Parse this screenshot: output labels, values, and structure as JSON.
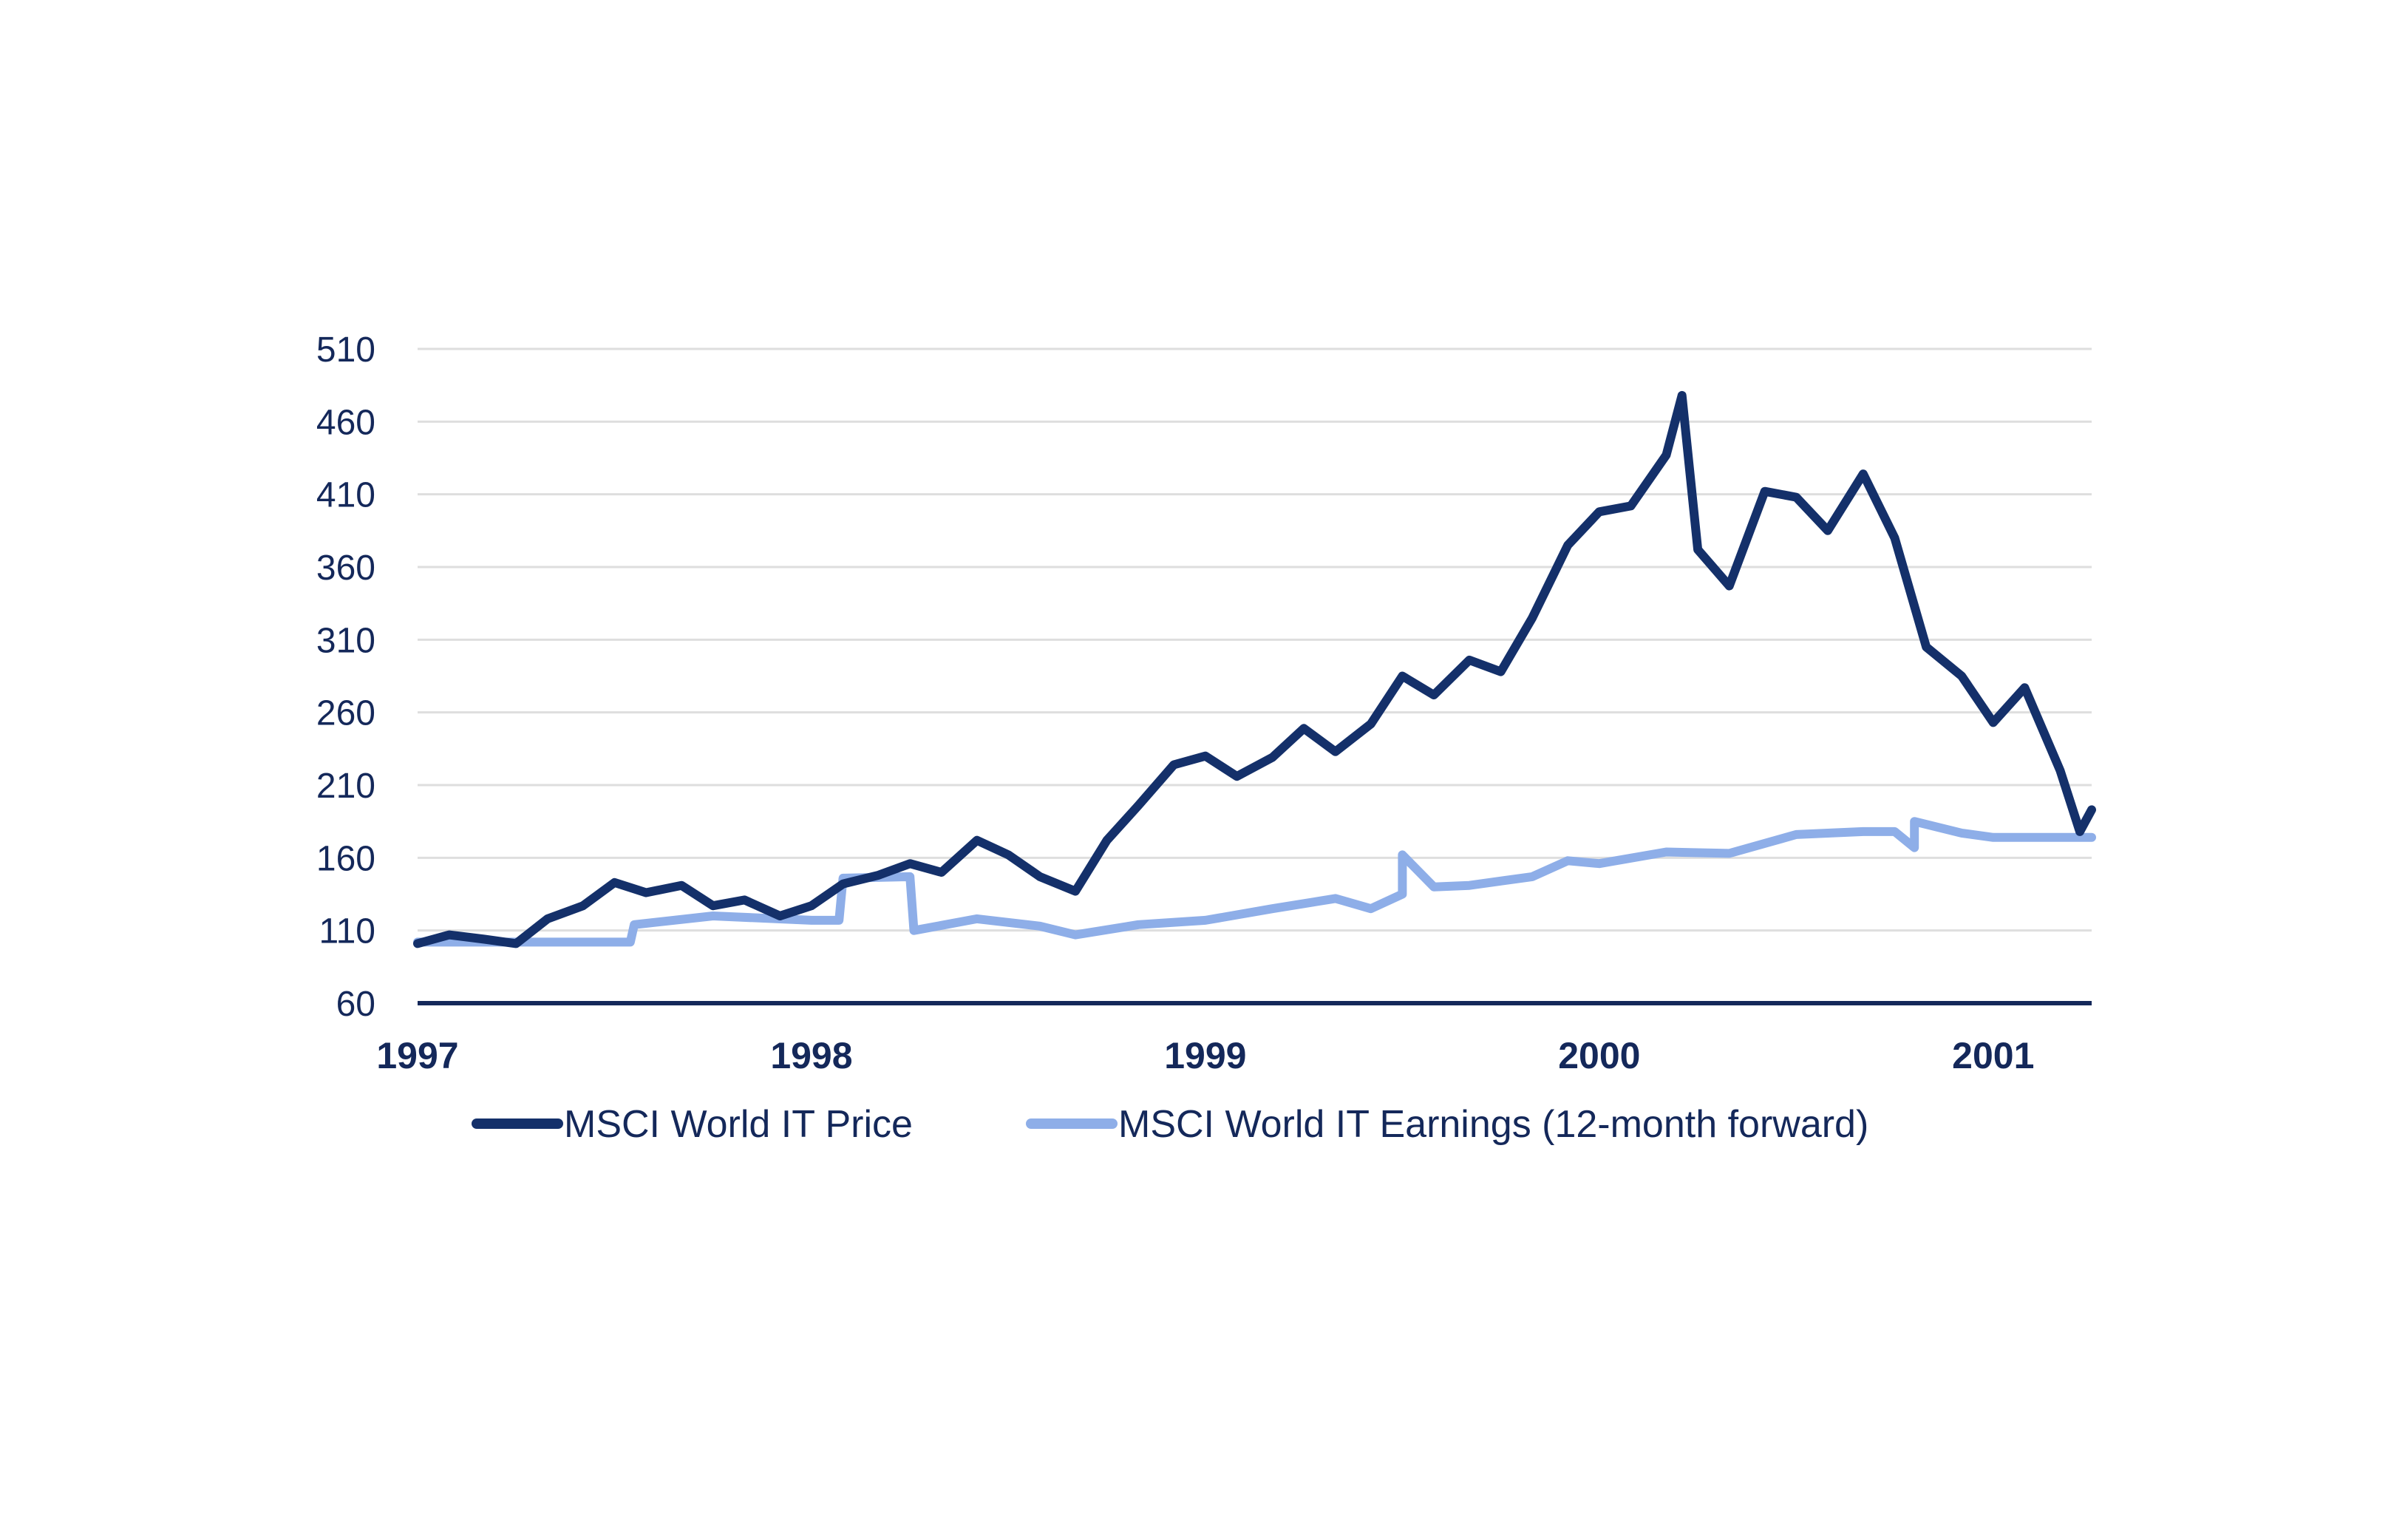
{
  "colors": {
    "price": "#14306a",
    "earnings": "#8eaee8",
    "grid": "#dedede",
    "axis": "#14285a",
    "text": "#14285a"
  },
  "chart_data": {
    "type": "line",
    "title": "",
    "xlabel": "",
    "ylabel": "",
    "xlim": [
      1997.0,
      2001.25
    ],
    "ylim": [
      60,
      510
    ],
    "yticks": [
      "510",
      "460",
      "410",
      "360",
      "310",
      "260",
      "210",
      "160",
      "110",
      "60"
    ],
    "xticks": [
      "1997",
      "1998",
      "1999",
      "2000",
      "2001"
    ],
    "legend_position": "bottom",
    "series": [
      {
        "name": "MSCI World IT Price",
        "x": [
          1997.0,
          1997.08,
          1997.17,
          1997.25,
          1997.33,
          1997.42,
          1997.5,
          1997.58,
          1997.67,
          1997.75,
          1997.83,
          1997.92,
          1998.0,
          1998.08,
          1998.17,
          1998.25,
          1998.33,
          1998.42,
          1998.5,
          1998.58,
          1998.67,
          1998.75,
          1998.83,
          1998.92,
          1999.0,
          1999.08,
          1999.17,
          1999.25,
          1999.33,
          1999.42,
          1999.5,
          1999.58,
          1999.67,
          1999.75,
          1999.83,
          1999.92,
          2000.0,
          2000.08,
          2000.17,
          2000.21,
          2000.25,
          2000.33,
          2000.42,
          2000.5,
          2000.58,
          2000.67,
          2000.75,
          2000.83,
          2000.92,
          2001.0,
          2001.08,
          2001.17,
          2001.22,
          2001.25
        ],
        "values": [
          101,
          107,
          104,
          101,
          118,
          127,
          143,
          136,
          141,
          127,
          131,
          120,
          127,
          142,
          148,
          156,
          150,
          172,
          162,
          147,
          137,
          172,
          196,
          224,
          230,
          216,
          229,
          249,
          233,
          252,
          285,
          272,
          296,
          288,
          325,
          375,
          398,
          402,
          437,
          478,
          372,
          347,
          412,
          408,
          385,
          424,
          380,
          305,
          285,
          253,
          277,
          220,
          178,
          193
        ]
      },
      {
        "name": "MSCI World IT Earnings (12-month forward)",
        "x": [
          1997.0,
          1997.54,
          1997.55,
          1997.75,
          1998.0,
          1998.07,
          1998.08,
          1998.25,
          1998.26,
          1998.42,
          1998.58,
          1998.67,
          1998.83,
          1999.0,
          1999.17,
          1999.33,
          1999.42,
          1999.5,
          1999.5,
          1999.58,
          1999.67,
          1999.83,
          1999.92,
          2000.0,
          2000.17,
          2000.33,
          2000.5,
          2000.67,
          2000.75,
          2000.8,
          2000.8,
          2000.92,
          2001.0,
          2001.25
        ],
        "values": [
          102,
          102,
          114,
          120,
          117,
          117,
          146,
          147,
          110,
          118,
          113,
          107,
          114,
          117,
          125,
          132,
          125,
          135,
          162,
          140,
          141,
          147,
          158,
          156,
          164,
          163,
          176,
          178,
          178,
          167,
          185,
          177,
          174,
          174
        ]
      }
    ]
  }
}
